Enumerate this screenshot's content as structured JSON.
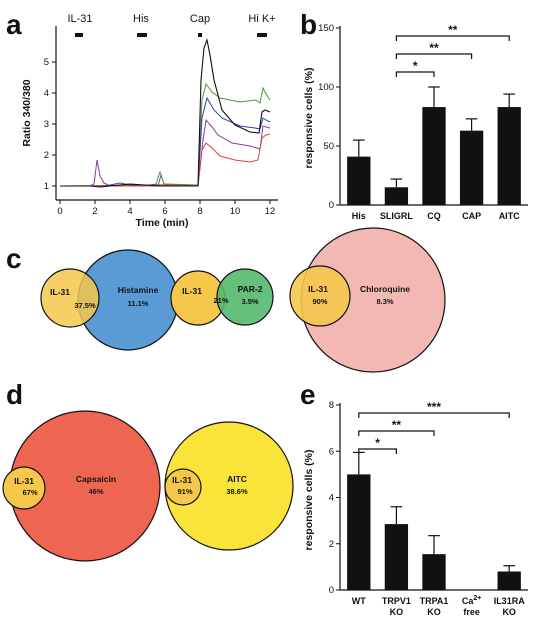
{
  "panels": {
    "a": "a",
    "b": "b",
    "c": "c",
    "d": "d",
    "e": "e"
  },
  "trace": {
    "ylabel": "Ratio 340/380",
    "xlabel": "Time (min)",
    "xticks": [
      "0",
      "2",
      "4",
      "6",
      "8",
      "10",
      "12"
    ],
    "yticks": [
      "1",
      "2",
      "3",
      "4",
      "5"
    ],
    "stimuli": [
      "IL-31",
      "His",
      "Cap",
      "Hi K+"
    ],
    "colors": {
      "black": "#111111",
      "green": "#4a9a3a",
      "blue": "#3a3ab0",
      "red": "#e0403a",
      "purple": "#8a3aa0"
    }
  },
  "chart_data": [
    {
      "type": "bar",
      "panel": "b",
      "categories": [
        "His",
        "SLIGRL",
        "CQ",
        "CAP",
        "AITC"
      ],
      "values": [
        41,
        15,
        83,
        63,
        83
      ],
      "errors": [
        14,
        7,
        17,
        10,
        11
      ],
      "ylabel": "responsive cells (%)",
      "ylim": [
        0,
        150
      ],
      "yticks": [
        "0",
        "50",
        "100",
        "150"
      ],
      "significance": [
        {
          "from": "SLIGRL",
          "to": "CQ",
          "label": "*"
        },
        {
          "from": "SLIGRL",
          "to": "CAP",
          "label": "**"
        },
        {
          "from": "SLIGRL",
          "to": "AITC",
          "label": "**"
        }
      ]
    },
    {
      "type": "bar",
      "panel": "e",
      "categories": [
        "WT",
        "TRPV1 KO",
        "TRPA1 KO",
        "Ca2+ free",
        "IL31RA KO"
      ],
      "values": [
        5.0,
        2.85,
        1.55,
        0.0,
        0.8
      ],
      "errors": [
        0.95,
        0.75,
        0.8,
        0.0,
        0.25
      ],
      "ylabel": "responsive cells (%)",
      "ylim": [
        0,
        8
      ],
      "yticks": [
        "0",
        "2",
        "4",
        "6",
        "8"
      ],
      "significance": [
        {
          "from": "WT",
          "to": "TRPV1 KO",
          "label": "*"
        },
        {
          "from": "WT",
          "to": "TRPA1 KO",
          "label": "**"
        },
        {
          "from": "WT",
          "to": "IL31RA KO",
          "label": "***"
        }
      ]
    }
  ],
  "venn": {
    "c": [
      {
        "left": "IL-31",
        "right": "Histamine",
        "overlap": "37.5%",
        "right_pct": "11.1%"
      },
      {
        "left": "IL-31",
        "right": "PAR-2",
        "overlap": "21%",
        "right_pct": "3.5%"
      },
      {
        "left": "IL-31",
        "right": "Chloroquine",
        "overlap": "90%",
        "right_pct": "8.3%"
      }
    ],
    "d": [
      {
        "left": "IL-31",
        "right": "Capsaicin",
        "overlap": "67%",
        "right_pct": "46%"
      },
      {
        "left": "IL-31",
        "right": "AITC",
        "overlap": "91%",
        "right_pct": "38.6%"
      }
    ]
  }
}
